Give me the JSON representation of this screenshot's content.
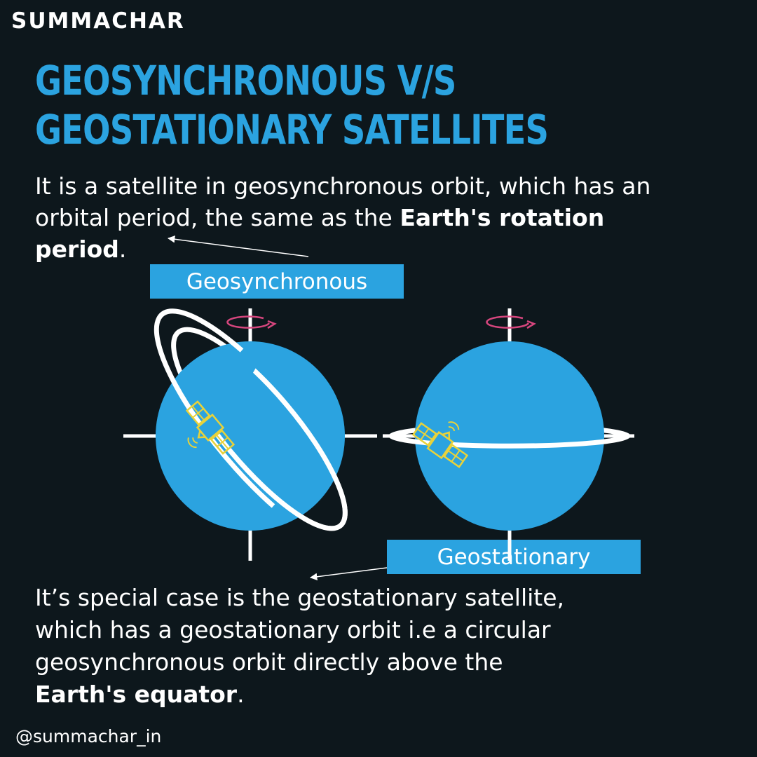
{
  "logo": "SUMMACHAR",
  "title": {
    "line1": "GEOSYNCHRONOUS V/S",
    "line2": "GEOSTATIONARY SATELLITES"
  },
  "intro": {
    "line1": "It is a satellite in geosynchronous orbit, which has an",
    "line2_plain": "orbital period, the same as the ",
    "line2_bold": "Earth's rotation",
    "line3_bold": "period",
    "line3_end": "."
  },
  "labels": {
    "geosynchronous": "Geosynchronous",
    "geostationary": "Geostationary"
  },
  "outro": {
    "line1": "It’s special case is the geostationary satellite,",
    "line2": "which has a geostationary orbit i.e a circular",
    "line3": "geosynchronous orbit directly above the",
    "line4_bold": "Earth's equator",
    "line4_end": "."
  },
  "handle": "@summachar_in",
  "colors": {
    "background": "#0d171c",
    "accent_blue": "#2ba3e0",
    "satellite_yellow": "#e8d23a",
    "rotation_arrow": "#d6467e",
    "text": "#ffffff"
  }
}
